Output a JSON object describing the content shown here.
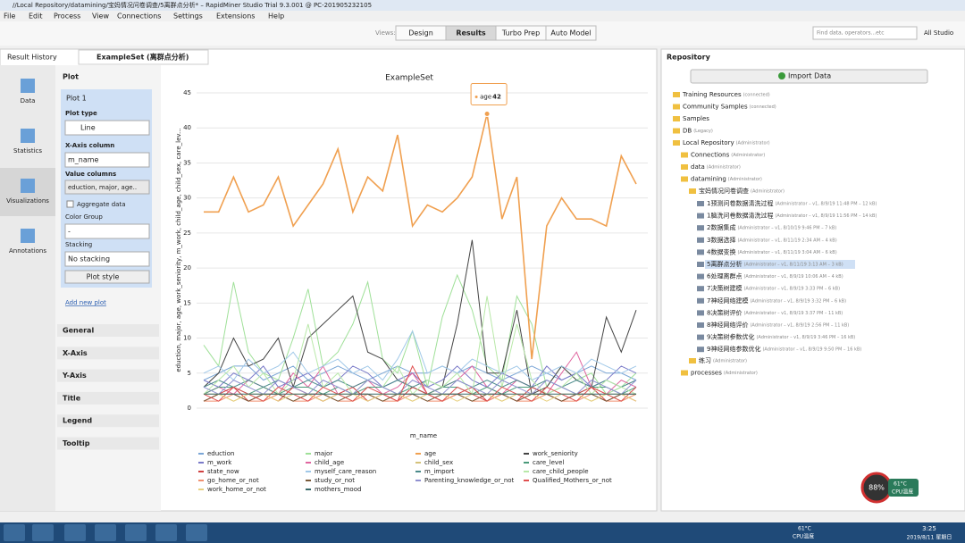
{
  "window": {
    "title": "//Local Repository/datamining/宝妈情况问卷调查/5离群点分析* – RapidMiner Studio Trial 9.3.001 @ PC-201905232105"
  },
  "menu": [
    "File",
    "Edit",
    "Process",
    "View",
    "Connections",
    "Settings",
    "Extensions",
    "Help"
  ],
  "toolbar": {
    "views_label": "Views:",
    "views": [
      "Design",
      "Results",
      "Turbo Prep",
      "Auto Model"
    ],
    "search": "Find data, operators...etc",
    "scope": "All Studio"
  },
  "tabs": [
    "Result History",
    "ExampleSet (离群点分析)"
  ],
  "sidebar": [
    "Data",
    "Statistics",
    "Visualizations",
    "Annotations"
  ],
  "plot_panel": {
    "header": "Plot",
    "plot_name": "Plot 1",
    "plot_type_label": "Plot type",
    "plot_type": "Line",
    "x_axis_label": "X-Axis column",
    "x_axis": "m_name",
    "value_columns_label": "Value columns",
    "value_columns": "eduction, major, age..",
    "aggregate": "Aggregate data",
    "color_group_label": "Color Group",
    "color_group": "-",
    "stacking_label": "Stacking",
    "stacking": "No stacking",
    "plot_style": "Plot style",
    "add_plot": "Add new plot",
    "sections": [
      "General",
      "X-Axis",
      "Y-Axis",
      "Title",
      "Legend",
      "Tooltip"
    ]
  },
  "chart": {
    "type": "line",
    "title": "ExampleSet",
    "x_label": "m_name",
    "y_label": "eduction, major, age, work_seniority, m_work, child_age, child_sex, care_lev...",
    "categories": [
      null,
      null,
      null,
      null,
      null,
      null,
      null,
      null,
      null,
      null,
      null,
      null,
      null,
      null,
      null,
      null,
      null,
      null,
      null,
      null,
      null,
      null,
      null,
      null,
      null,
      null,
      null,
      null,
      null,
      null
    ],
    "ylim": [
      0,
      45
    ],
    "yticks": [
      0,
      5,
      10,
      15,
      20,
      25,
      30,
      35,
      40,
      45
    ],
    "grid": true,
    "series": [
      {
        "name": "eduction",
        "color": "#7aa6d6",
        "values": [
          4,
          5,
          6,
          6,
          4,
          5,
          6,
          4,
          5,
          6,
          5,
          4,
          5,
          6,
          5,
          5,
          6,
          5,
          6,
          5,
          4,
          5,
          6,
          5,
          4,
          5,
          6,
          5,
          5,
          4
        ]
      },
      {
        "name": "major",
        "color": "#9fe098",
        "values": [
          9,
          6,
          18,
          8,
          5,
          4,
          10,
          17,
          6,
          8,
          12,
          18,
          7,
          5,
          11,
          3,
          13,
          19,
          14,
          6,
          4,
          16,
          12,
          3,
          6,
          4,
          5,
          2,
          3,
          5
        ]
      },
      {
        "name": "age",
        "color": "#f0a050",
        "values": [
          28,
          28,
          33,
          28,
          29,
          33,
          26,
          29,
          32,
          37,
          28,
          33,
          31,
          39,
          26,
          29,
          28,
          30,
          33,
          42,
          27,
          33,
          7,
          26,
          30,
          27,
          27,
          26,
          36,
          32
        ]
      },
      {
        "name": "work_seniority",
        "color": "#444444",
        "values": [
          3,
          5,
          10,
          6,
          7,
          10,
          3,
          10,
          12,
          14,
          16,
          8,
          7,
          4,
          3,
          2,
          3,
          12,
          24,
          5,
          5,
          14,
          2,
          3,
          6,
          4,
          3,
          13,
          8,
          14
        ]
      },
      {
        "name": "m_work",
        "color": "#7a7ac8",
        "values": [
          4,
          3,
          5,
          4,
          6,
          3,
          4,
          5,
          3,
          4,
          6,
          5,
          3,
          4,
          5,
          3,
          4,
          6,
          4,
          3,
          5,
          4,
          3,
          6,
          4,
          5,
          3,
          4,
          6,
          5
        ]
      },
      {
        "name": "child_age",
        "color": "#e066a0",
        "values": [
          2,
          3,
          2,
          4,
          3,
          2,
          5,
          3,
          6,
          2,
          3,
          4,
          2,
          3,
          5,
          2,
          3,
          4,
          6,
          3,
          2,
          4,
          3,
          2,
          5,
          8,
          3,
          2,
          4,
          3
        ]
      },
      {
        "name": "child_sex",
        "color": "#d4c27a",
        "values": [
          1,
          2,
          1,
          2,
          1,
          2,
          1,
          2,
          1,
          2,
          1,
          2,
          1,
          2,
          1,
          2,
          1,
          2,
          1,
          2,
          1,
          2,
          1,
          2,
          1,
          2,
          1,
          2,
          1,
          2
        ]
      },
      {
        "name": "care_level",
        "color": "#4a9a7a",
        "values": [
          2,
          3,
          3,
          2,
          3,
          2,
          3,
          3,
          2,
          3,
          2,
          3,
          3,
          2,
          3,
          2,
          3,
          3,
          2,
          3,
          2,
          3,
          3,
          2,
          3,
          2,
          3,
          3,
          2,
          3
        ]
      },
      {
        "name": "state_now",
        "color": "#d04040",
        "values": [
          1,
          2,
          3,
          1,
          2,
          1,
          3,
          2,
          1,
          2,
          3,
          1,
          2,
          1,
          3,
          2,
          1,
          2,
          3,
          1,
          2,
          1,
          3,
          2,
          1,
          2,
          3,
          1,
          2,
          1
        ]
      },
      {
        "name": "myself_care_reason",
        "color": "#a0c8e8",
        "values": [
          5,
          6,
          4,
          7,
          5,
          6,
          8,
          5,
          6,
          7,
          5,
          6,
          4,
          7,
          11,
          5,
          6,
          5,
          7,
          6,
          5,
          6,
          4,
          5,
          6,
          5,
          7,
          6,
          5,
          6
        ]
      },
      {
        "name": "m_import",
        "color": "#4a8a8a",
        "values": [
          3,
          4,
          3,
          4,
          3,
          4,
          3,
          4,
          3,
          4,
          3,
          4,
          3,
          4,
          3,
          4,
          3,
          4,
          3,
          4,
          3,
          4,
          3,
          4,
          3,
          4,
          3,
          4,
          3,
          4
        ]
      },
      {
        "name": "care_child_people",
        "color": "#b8e8a8",
        "values": [
          2,
          4,
          6,
          3,
          5,
          2,
          4,
          12,
          3,
          5,
          2,
          4,
          3,
          6,
          2,
          4,
          3,
          5,
          2,
          16,
          3,
          12,
          4,
          2,
          3,
          5,
          2,
          4,
          3,
          2
        ]
      },
      {
        "name": "go_home_or_not",
        "color": "#f09070",
        "values": [
          1,
          1,
          2,
          1,
          1,
          2,
          1,
          1,
          2,
          1,
          1,
          2,
          1,
          1,
          2,
          1,
          1,
          2,
          1,
          1,
          2,
          1,
          1,
          2,
          1,
          1,
          2,
          1,
          1,
          2
        ]
      },
      {
        "name": "study_or_not",
        "color": "#7a5a3a",
        "values": [
          1,
          2,
          2,
          1,
          2,
          2,
          1,
          2,
          2,
          1,
          2,
          2,
          1,
          2,
          2,
          1,
          2,
          2,
          1,
          2,
          2,
          1,
          2,
          2,
          1,
          2,
          2,
          1,
          2,
          2
        ]
      },
      {
        "name": "Parenting_knowledge_or_not",
        "color": "#9090d0",
        "values": [
          3,
          2,
          4,
          3,
          2,
          4,
          3,
          2,
          4,
          3,
          2,
          4,
          3,
          2,
          4,
          3,
          2,
          4,
          3,
          2,
          4,
          3,
          2,
          4,
          3,
          2,
          4,
          3,
          2,
          4
        ]
      },
      {
        "name": "Qualified_Mothers_or_not",
        "color": "#e05050",
        "values": [
          2,
          1,
          3,
          2,
          1,
          3,
          2,
          1,
          3,
          2,
          1,
          3,
          2,
          1,
          6,
          2,
          1,
          3,
          2,
          1,
          3,
          2,
          1,
          3,
          2,
          1,
          3,
          2,
          1,
          3
        ]
      },
      {
        "name": "work_home_or_not",
        "color": "#e8d080",
        "values": [
          2,
          2,
          1,
          2,
          2,
          1,
          2,
          2,
          1,
          2,
          2,
          1,
          2,
          2,
          1,
          2,
          2,
          1,
          2,
          2,
          1,
          2,
          2,
          1,
          2,
          2,
          1,
          2,
          2,
          1
        ]
      },
      {
        "name": "mothers_mood",
        "color": "#3a6a6a",
        "values": [
          2,
          2,
          2,
          2,
          2,
          2,
          2,
          2,
          2,
          2,
          2,
          2,
          2,
          2,
          2,
          2,
          2,
          2,
          2,
          2,
          2,
          2,
          2,
          2,
          2,
          2,
          2,
          2,
          2,
          2
        ]
      }
    ]
  },
  "repository": {
    "title": "Repository",
    "import": "Import Data",
    "tree": [
      {
        "label": "Training Resources",
        "note": "(connected)"
      },
      {
        "label": "Community Samples",
        "note": "(connected)"
      },
      {
        "label": "Samples"
      },
      {
        "label": "DB",
        "note": "(Legacy)"
      },
      {
        "label": "Local Repository",
        "note": "(Administrator)"
      },
      {
        "label": "Connections",
        "note": "(Administrator)"
      },
      {
        "label": "data",
        "note": "(Administrator)"
      },
      {
        "label": "datamining",
        "note": "(Administrator)"
      },
      {
        "label": "宝妈情况问卷调查",
        "note": "(Administrator)"
      },
      {
        "label": "1预测问卷数据清洗过程",
        "note": "(Administrator – v1, 8/9/19 11:48 PM – 12 kB)"
      },
      {
        "label": "1脑洗问卷数据清洗过程",
        "note": "(Administrator – v1, 8/9/19 11:56 PM – 14 kB)"
      },
      {
        "label": "2数据集成",
        "note": "(Administrator – v1, 8/10/19 9:46 PM – 7 kB)"
      },
      {
        "label": "3数据选择",
        "note": "(Administrator – v1, 8/11/19 2:34 AM – 4 kB)"
      },
      {
        "label": "4数据变换",
        "note": "(Administrator – v1, 8/11/19 3:04 AM – 6 kB)"
      },
      {
        "label": "5离群点分析",
        "note": "(Administrator – v1, 8/11/19 3:13 AM – 3 kB)"
      },
      {
        "label": "6处理离群点",
        "note": "(Administrator – v1, 8/9/19 10:06 AM – 4 kB)"
      },
      {
        "label": "7决策树建模",
        "note": "(Administrator – v1, 8/9/19 3:33 PM – 6 kB)"
      },
      {
        "label": "7神经网络建模",
        "note": "(Administrator – v1, 8/9/19 3:32 PM – 6 kB)"
      },
      {
        "label": "8决策树评价",
        "note": "(Administrator – v1, 8/9/19 3:37 PM – 11 kB)"
      },
      {
        "label": "8神经网络评价",
        "note": "(Administrator – v1, 8/9/19 2:56 PM – 11 kB)"
      },
      {
        "label": "9决策树参数优化",
        "note": "(Administrator – v1, 8/9/19 3:46 PM – 16 kB)"
      },
      {
        "label": "9神经网络参数优化",
        "note": "(Administrator – v1, 8/9/19 9:50 PM – 16 kB)"
      },
      {
        "label": "练习",
        "note": "(Administrator)"
      },
      {
        "label": "processes",
        "note": "(Administrator)"
      }
    ]
  },
  "taskbar": {
    "temp": "61°C",
    "temp_label": "CPU温度",
    "time": "3:25",
    "date": "2019/8/11 星期日"
  },
  "cpu_widget": {
    "percent": "88%",
    "temp": "61°C",
    "label": "CPU温度"
  }
}
